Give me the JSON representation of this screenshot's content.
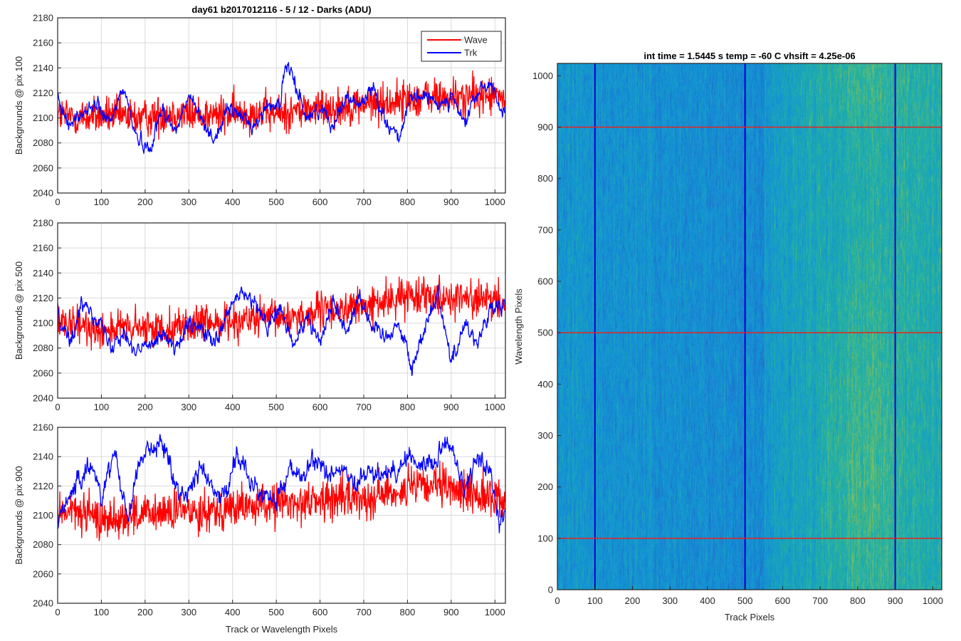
{
  "figure": {
    "left_title": "day61 b2017012116 - 5 / 12 - Darks (ADU)",
    "right_title": "int time = 1.5445 s    temp = -60 C    vhsift = 4.25e-06"
  },
  "legend": {
    "entries": [
      "Wave",
      "Trk"
    ],
    "colors": [
      "#ff0000",
      "#0000ff"
    ],
    "placement": "top-right (top panel)"
  },
  "colors": {
    "wave": "#ff0000",
    "trk": "#0000ff",
    "grid": "#d9d9d9",
    "colormap": "parula"
  },
  "chart_data": [
    {
      "type": "line",
      "ylabel": "Backgrounds @ pix 100",
      "xlabel": "",
      "xlim": [
        0,
        1024
      ],
      "ylim": [
        2040,
        2180
      ],
      "xticks": [
        0,
        100,
        200,
        300,
        400,
        500,
        600,
        700,
        800,
        900,
        1000
      ],
      "yticks": [
        2040,
        2060,
        2080,
        2100,
        2120,
        2140,
        2160,
        2180
      ],
      "grid": true,
      "series": [
        {
          "name": "Wave",
          "color": "#ff0000",
          "x": [
            0,
            50,
            100,
            150,
            200,
            250,
            300,
            350,
            400,
            450,
            500,
            550,
            600,
            650,
            700,
            750,
            800,
            850,
            900,
            950,
            1000,
            1024
          ],
          "y": [
            2103,
            2100,
            2102,
            2101,
            2100,
            2104,
            2103,
            2102,
            2103,
            2105,
            2103,
            2106,
            2108,
            2109,
            2111,
            2112,
            2115,
            2117,
            2116,
            2117,
            2118,
            2115
          ],
          "noise": 20
        },
        {
          "name": "Trk",
          "color": "#0000ff",
          "x": [
            0,
            30,
            60,
            90,
            120,
            150,
            180,
            210,
            240,
            270,
            300,
            330,
            360,
            390,
            420,
            450,
            480,
            510,
            520,
            540,
            570,
            600,
            630,
            660,
            690,
            720,
            750,
            780,
            810,
            840,
            870,
            900,
            930,
            960,
            990,
            1024
          ],
          "y": [
            2112,
            2095,
            2105,
            2110,
            2095,
            2125,
            2085,
            2075,
            2108,
            2088,
            2118,
            2098,
            2083,
            2107,
            2102,
            2093,
            2110,
            2112,
            2142,
            2130,
            2100,
            2108,
            2095,
            2118,
            2110,
            2125,
            2098,
            2085,
            2115,
            2118,
            2110,
            2118,
            2095,
            2120,
            2128,
            2100
          ],
          "noise": 6
        }
      ]
    },
    {
      "type": "line",
      "ylabel": "Backgrounds @ pix 500",
      "xlabel": "",
      "xlim": [
        0,
        1024
      ],
      "ylim": [
        2040,
        2180
      ],
      "xticks": [
        0,
        100,
        200,
        300,
        400,
        500,
        600,
        700,
        800,
        900,
        1000
      ],
      "yticks": [
        2040,
        2060,
        2080,
        2100,
        2120,
        2140,
        2160,
        2180
      ],
      "grid": true,
      "series": [
        {
          "name": "Wave",
          "color": "#ff0000",
          "x": [
            0,
            50,
            100,
            150,
            200,
            250,
            300,
            350,
            400,
            450,
            500,
            550,
            600,
            650,
            700,
            750,
            800,
            850,
            900,
            950,
            1000,
            1024
          ],
          "y": [
            2098,
            2097,
            2095,
            2096,
            2095,
            2097,
            2098,
            2100,
            2102,
            2103,
            2104,
            2106,
            2109,
            2111,
            2113,
            2117,
            2122,
            2124,
            2120,
            2120,
            2116,
            2115
          ],
          "noise": 19
        },
        {
          "name": "Trk",
          "color": "#0000ff",
          "x": [
            0,
            30,
            60,
            90,
            120,
            150,
            180,
            210,
            240,
            270,
            300,
            330,
            360,
            390,
            420,
            450,
            480,
            510,
            540,
            570,
            600,
            630,
            660,
            690,
            720,
            750,
            780,
            800,
            810,
            840,
            870,
            900,
            930,
            960,
            990,
            1024
          ],
          "y": [
            2110,
            2085,
            2118,
            2105,
            2082,
            2095,
            2075,
            2085,
            2093,
            2078,
            2098,
            2095,
            2082,
            2108,
            2125,
            2115,
            2098,
            2112,
            2080,
            2108,
            2085,
            2118,
            2093,
            2123,
            2096,
            2090,
            2100,
            2078,
            2062,
            2098,
            2125,
            2068,
            2100,
            2085,
            2110,
            2113
          ],
          "noise": 7
        }
      ]
    },
    {
      "type": "line",
      "ylabel": "Backgrounds @ pix 900",
      "xlabel": "Track or Wavelength Pixels",
      "xlim": [
        0,
        1024
      ],
      "ylim": [
        2040,
        2160
      ],
      "xticks": [
        0,
        100,
        200,
        300,
        400,
        500,
        600,
        700,
        800,
        900,
        1000
      ],
      "yticks": [
        2040,
        2060,
        2080,
        2100,
        2120,
        2140,
        2160
      ],
      "grid": true,
      "series": [
        {
          "name": "Wave",
          "color": "#ff0000",
          "x": [
            0,
            50,
            100,
            150,
            200,
            250,
            300,
            350,
            400,
            450,
            500,
            550,
            600,
            650,
            700,
            750,
            800,
            850,
            900,
            950,
            1000,
            1024
          ],
          "y": [
            2103,
            2102,
            2097,
            2099,
            2100,
            2102,
            2103,
            2104,
            2105,
            2106,
            2108,
            2109,
            2110,
            2112,
            2112,
            2115,
            2118,
            2120,
            2118,
            2115,
            2112,
            2110
          ],
          "noise": 18
        },
        {
          "name": "Trk",
          "color": "#0000ff",
          "x": [
            0,
            20,
            50,
            80,
            100,
            130,
            160,
            190,
            220,
            250,
            270,
            300,
            330,
            360,
            390,
            410,
            440,
            470,
            500,
            530,
            560,
            590,
            620,
            650,
            680,
            710,
            740,
            770,
            800,
            830,
            860,
            880,
            900,
            930,
            960,
            990,
            1010,
            1024
          ],
          "y": [
            2095,
            2112,
            2122,
            2135,
            2112,
            2145,
            2098,
            2140,
            2148,
            2145,
            2118,
            2115,
            2135,
            2112,
            2118,
            2145,
            2122,
            2115,
            2108,
            2132,
            2125,
            2138,
            2128,
            2132,
            2118,
            2130,
            2128,
            2130,
            2140,
            2135,
            2135,
            2150,
            2148,
            2115,
            2140,
            2130,
            2092,
            2108
          ],
          "noise": 7
        }
      ]
    },
    {
      "type": "heatmap",
      "title": "int time = 1.5445 s    temp = -60 C    vhsift = 4.25e-06",
      "xlabel": "Track Pixels",
      "ylabel": "Wavelength Pixels",
      "xlim": [
        0,
        1024
      ],
      "ylim": [
        0,
        1024
      ],
      "xticks": [
        0,
        100,
        200,
        300,
        400,
        500,
        600,
        700,
        800,
        900,
        1000
      ],
      "yticks": [
        0,
        100,
        200,
        300,
        400,
        500,
        600,
        700,
        800,
        900,
        1000
      ],
      "colormap": "parula",
      "vertical_markers": {
        "x": [
          100,
          500,
          900
        ],
        "color": "#0000cc"
      },
      "horizontal_markers": {
        "y": [
          100,
          500,
          900
        ],
        "color": "#e8231c"
      }
    }
  ]
}
